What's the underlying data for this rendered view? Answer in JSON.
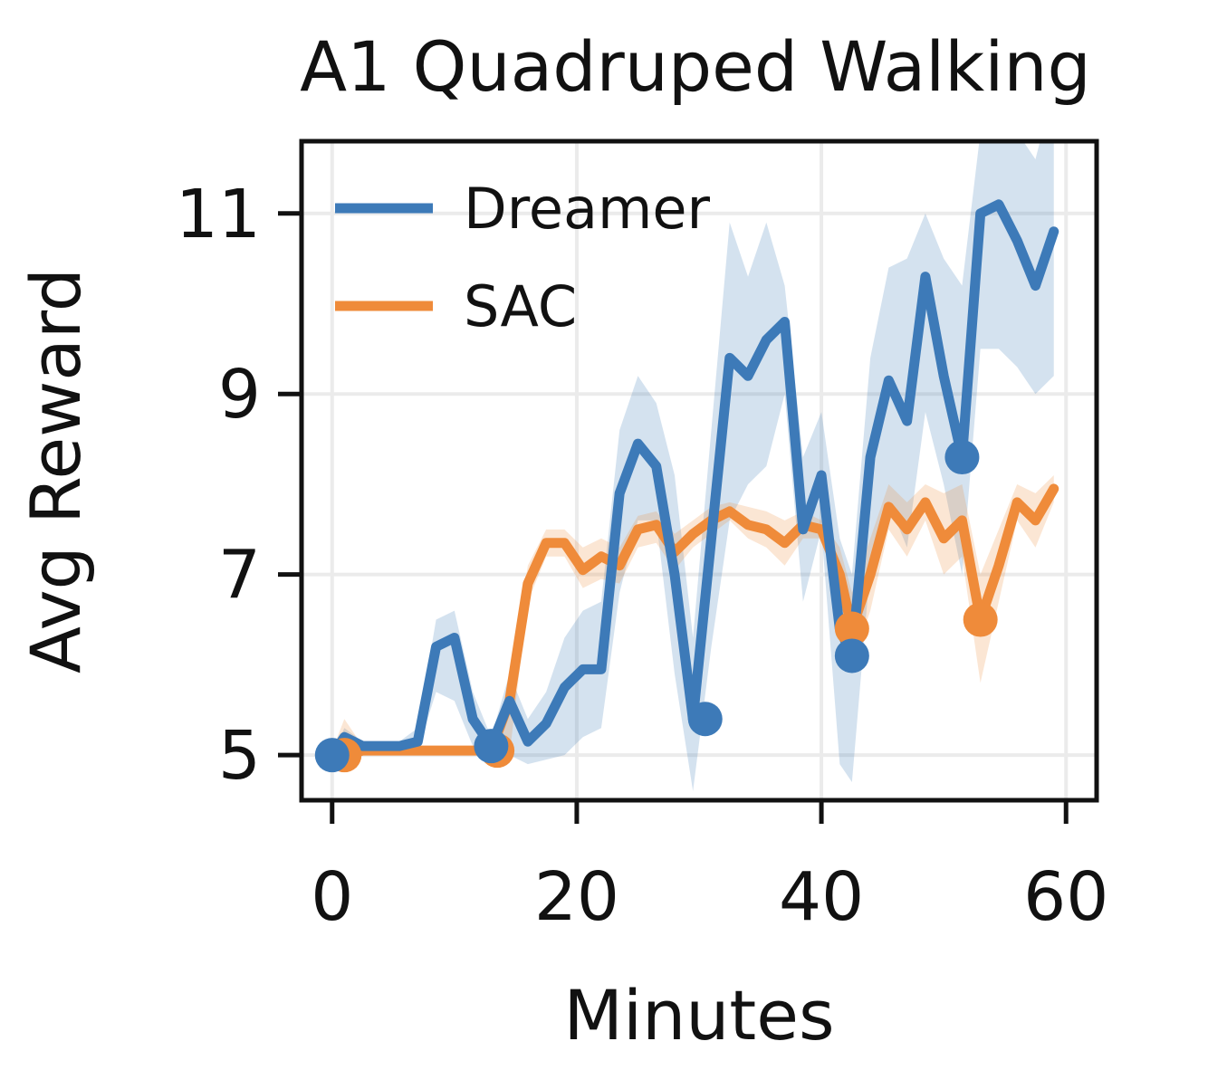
{
  "chart_data": {
    "type": "line",
    "title": "A1 Quadruped Walking",
    "xlabel": "Minutes",
    "ylabel": "Avg Reward",
    "xlim": [
      -2.5,
      62.5
    ],
    "ylim": [
      4.5,
      11.8
    ],
    "xticks": [
      0,
      20,
      40,
      60
    ],
    "yticks": [
      5,
      7,
      9,
      11
    ],
    "grid": true,
    "legend_position": "top-left",
    "series": [
      {
        "name": "Dreamer",
        "color": "#3d7ab8",
        "x": [
          0,
          1,
          2.5,
          4,
          5.5,
          7,
          8.5,
          10,
          11.5,
          13,
          14.5,
          16,
          17.5,
          19,
          20.5,
          22,
          23.5,
          25,
          26.5,
          28,
          29.5,
          31,
          32.5,
          34,
          35.5,
          37,
          38.5,
          40,
          41.5,
          42.5,
          44,
          45.5,
          47,
          48.5,
          50,
          51.5,
          53,
          54.5,
          56,
          57.5,
          59
        ],
        "y": [
          5.0,
          5.2,
          5.1,
          5.1,
          5.1,
          5.15,
          6.2,
          6.3,
          5.4,
          5.1,
          5.6,
          5.15,
          5.35,
          5.75,
          5.95,
          5.95,
          7.9,
          8.45,
          8.2,
          7.0,
          5.4,
          7.4,
          9.4,
          9.2,
          9.6,
          9.8,
          7.5,
          8.1,
          6.4,
          6.1,
          8.3,
          9.15,
          8.7,
          10.3,
          9.2,
          8.3,
          11.0,
          11.1,
          10.7,
          10.2,
          10.8
        ],
        "band_upper": [
          5.0,
          5.3,
          5.15,
          5.15,
          5.15,
          5.3,
          6.5,
          6.6,
          5.7,
          5.2,
          5.9,
          5.4,
          5.7,
          6.3,
          6.6,
          6.7,
          8.6,
          9.2,
          8.9,
          8.1,
          6.3,
          8.6,
          10.9,
          10.3,
          10.9,
          10.2,
          8.3,
          8.8,
          7.4,
          7.0,
          9.4,
          10.4,
          10.5,
          11.0,
          10.5,
          10.2,
          11.9,
          12.3,
          11.9,
          11.6,
          12.4
        ],
        "band_lower": [
          5.0,
          5.1,
          5.05,
          5.05,
          5.05,
          5.05,
          5.7,
          5.6,
          5.1,
          4.95,
          5.0,
          4.9,
          4.95,
          5.0,
          5.2,
          5.3,
          6.8,
          7.6,
          7.6,
          5.9,
          4.6,
          6.2,
          7.6,
          8.0,
          8.2,
          9.0,
          6.7,
          7.5,
          4.9,
          4.7,
          7.1,
          7.8,
          7.3,
          8.8,
          8.0,
          7.0,
          9.5,
          9.5,
          9.3,
          9.0,
          9.2
        ],
        "markers": [
          {
            "x": 0,
            "y": 5.0
          },
          {
            "x": 13,
            "y": 5.1
          },
          {
            "x": 30.5,
            "y": 5.4
          },
          {
            "x": 42.5,
            "y": 6.1
          },
          {
            "x": 51.5,
            "y": 8.3
          }
        ]
      },
      {
        "name": "SAC",
        "color": "#ef8b3a",
        "x": [
          0,
          1,
          2.5,
          4,
          5.5,
          7,
          8.5,
          10,
          11.5,
          13,
          14.5,
          16,
          17.5,
          19,
          20.5,
          22,
          23.5,
          25,
          26.5,
          28,
          29.5,
          31,
          32.5,
          34,
          35.5,
          37,
          38.5,
          40,
          41.5,
          42.5,
          44,
          45.5,
          47,
          48.5,
          50,
          51.5,
          53,
          54.5,
          56,
          57.5,
          59
        ],
        "y": [
          5.0,
          5.0,
          5.05,
          5.05,
          5.05,
          5.05,
          5.05,
          5.05,
          5.05,
          5.05,
          5.6,
          6.9,
          7.35,
          7.35,
          7.05,
          7.2,
          7.1,
          7.5,
          7.55,
          7.25,
          7.45,
          7.6,
          7.7,
          7.55,
          7.5,
          7.35,
          7.55,
          7.5,
          7.0,
          6.4,
          7.0,
          7.75,
          7.5,
          7.8,
          7.4,
          7.6,
          6.5,
          7.1,
          7.8,
          7.6,
          7.95
        ],
        "band_upper": [
          5.05,
          5.4,
          5.1,
          5.1,
          5.1,
          5.1,
          5.1,
          5.1,
          5.1,
          5.1,
          5.8,
          7.1,
          7.5,
          7.5,
          7.3,
          7.4,
          7.3,
          7.65,
          7.7,
          7.45,
          7.6,
          7.75,
          7.8,
          7.75,
          7.7,
          7.6,
          7.7,
          7.6,
          7.3,
          6.8,
          7.4,
          8.0,
          7.8,
          8.0,
          7.9,
          8.0,
          7.0,
          7.5,
          8.0,
          7.9,
          8.1
        ],
        "band_lower": [
          4.95,
          4.9,
          5.0,
          5.0,
          5.0,
          5.0,
          5.0,
          5.0,
          5.0,
          5.0,
          5.0,
          6.7,
          7.2,
          7.2,
          6.85,
          6.95,
          6.9,
          7.3,
          7.35,
          7.05,
          7.3,
          7.45,
          7.6,
          7.4,
          7.3,
          7.1,
          7.4,
          7.4,
          6.7,
          6.0,
          6.6,
          7.5,
          7.2,
          7.6,
          7.0,
          7.2,
          5.8,
          6.7,
          7.6,
          7.3,
          7.8
        ],
        "markers": [
          {
            "x": 1,
            "y": 5.0
          },
          {
            "x": 13.5,
            "y": 5.05
          },
          {
            "x": 42.5,
            "y": 6.4
          },
          {
            "x": 53,
            "y": 6.5
          }
        ]
      }
    ]
  }
}
